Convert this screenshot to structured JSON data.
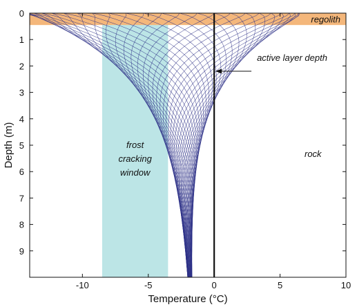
{
  "chart_data": {
    "type": "line",
    "title": "",
    "xlabel": "Temperature (°C)",
    "ylabel": "Depth (m)",
    "xlim": [
      -14,
      10
    ],
    "ylim": [
      10,
      0
    ],
    "y_inverted": true,
    "grid": false,
    "x_ticks": [
      -10,
      -5,
      0,
      5,
      10
    ],
    "y_ticks": [
      0,
      1,
      2,
      3,
      4,
      5,
      6,
      7,
      8,
      9
    ],
    "series_description": "family of temperature-depth profiles over an annual cycle",
    "profiles": {
      "count": 48,
      "mean_surface_temperature": -4.0,
      "surface_amplitude": 10.5,
      "deep_temperature": -1.85,
      "damping_depth": 2.4,
      "color": "#2b2f86"
    },
    "regions": [
      {
        "name": "regolith",
        "label": "regolith",
        "depth_range": [
          0,
          0.45
        ],
        "color": "#f4b77b"
      },
      {
        "name": "frost-cracking-window",
        "label_lines": [
          "frost",
          "cracking",
          "window"
        ],
        "temperature_range": [
          -8.5,
          -3.5
        ],
        "color": "#bce5e6"
      },
      {
        "name": "rock",
        "label": "rock"
      }
    ],
    "reference_line": {
      "temperature": 0,
      "color": "#111111"
    },
    "annotations": [
      {
        "name": "active-layer-depth",
        "label": "active layer depth",
        "depth": 2.2,
        "temperature": 0.1
      }
    ]
  }
}
